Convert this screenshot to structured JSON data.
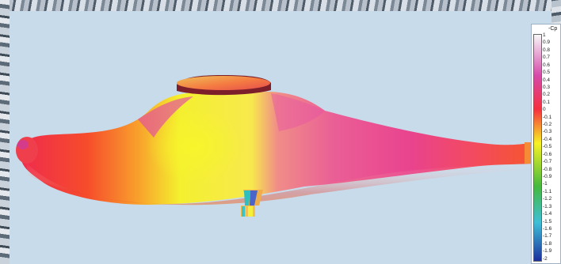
{
  "legend": {
    "title": "-Cp",
    "labels": [
      "1",
      "0.9",
      "0.8",
      "0.7",
      "0.6",
      "0.5",
      "0.4",
      "0.3",
      "0.2",
      "0.1",
      "0",
      "-0.1",
      "-0.2",
      "-0.3",
      "-0.4",
      "-0.5",
      "-0.6",
      "-0.7",
      "-0.8",
      "-0.9",
      "-1",
      "-1.1",
      "-1.2",
      "-1.3",
      "-1.4",
      "-1.5",
      "-1.6",
      "-1.7",
      "-1.8",
      "-1.9",
      "-2"
    ],
    "colors": {
      "top": "#f7f7f7",
      "upper": "#d64aa9",
      "mid_red": "#f5303f",
      "yellow": "#f7f224",
      "green": "#45b93d",
      "cyan": "#3fbfd7",
      "bottom": "#1c2f9d"
    }
  },
  "scene": {
    "background_color": "#c8dbeb",
    "body_colors": [
      "#e91f5f",
      "#f2d62f",
      "#f03d72",
      "#f8b235"
    ]
  }
}
